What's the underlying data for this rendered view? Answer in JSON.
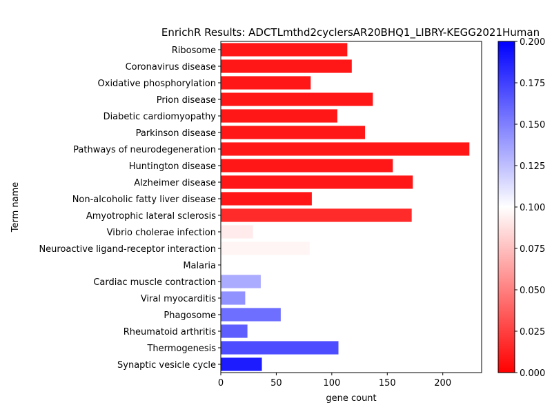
{
  "chart_data": {
    "type": "bar",
    "orientation": "horizontal",
    "title": "EnrichR Results: ADCTLmthd2cyclersAR20BHQ1_LIBRY-KEGG2021Human",
    "xlabel": "gene count",
    "ylabel": "Term name",
    "xlim": [
      0,
      235
    ],
    "x_ticks": [
      0,
      50,
      100,
      150,
      200
    ],
    "grid": false,
    "categories": [
      "Ribosome",
      "Coronavirus disease",
      "Oxidative phosphorylation",
      "Prion disease",
      "Diabetic cardiomyopathy",
      "Parkinson disease",
      "Pathways of neurodegeneration",
      "Huntington disease",
      "Alzheimer disease",
      "Non-alcoholic fatty liver disease",
      "Amyotrophic lateral sclerosis",
      "Vibrio cholerae infection",
      "Neuroactive ligand-receptor interaction",
      "Malaria",
      "Cardiac muscle contraction",
      "Viral myocarditis",
      "Phagosome",
      "Rheumatoid arthritis",
      "Thermogenesis",
      "Synaptic vesicle cycle"
    ],
    "values": [
      114,
      118,
      81,
      137,
      105,
      130,
      224,
      155,
      173,
      82,
      172,
      29,
      80,
      12,
      36,
      22,
      54,
      24,
      106,
      37
    ],
    "color_values": [
      0.009,
      0.009,
      0.009,
      0.009,
      0.009,
      0.009,
      0.009,
      0.009,
      0.009,
      0.009,
      0.017,
      0.092,
      0.096,
      0.1,
      0.133,
      0.143,
      0.157,
      0.163,
      0.17,
      0.189
    ],
    "colorbar": {
      "min": 0.0,
      "max": 0.2,
      "ticks": [
        "0.000",
        "0.025",
        "0.050",
        "0.075",
        "0.100",
        "0.125",
        "0.150",
        "0.175",
        "0.200"
      ],
      "colormap": [
        "#ff0000",
        "#ffffff",
        "#0000ff"
      ]
    }
  }
}
